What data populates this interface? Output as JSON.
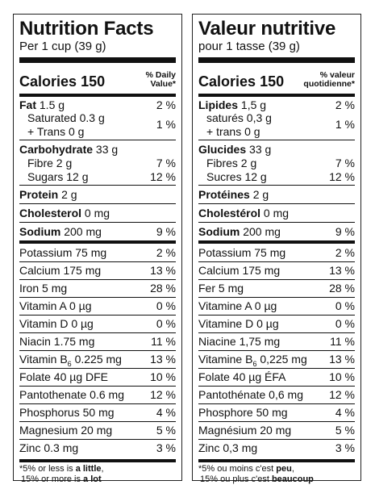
{
  "en": {
    "title": "Nutrition Facts",
    "serving": "Per 1 cup (39 g)",
    "calories_label": "Calories",
    "calories_value": "150",
    "dv_line1": "% Daily",
    "dv_line2": "Value*",
    "fat_label": "Fat",
    "fat_amount": "1.5 g",
    "fat_dv": "2 %",
    "sat_label": "Saturated 0.3 g",
    "trans_label": "+ Trans 0 g",
    "sattrans_dv": "1 %",
    "carb_label": "Carbohydrate",
    "carb_amount": "33 g",
    "fibre_label": "Fibre 2 g",
    "fibre_dv": "7 %",
    "sugars_label": "Sugars 12 g",
    "sugars_dv": "12 %",
    "protein_label": "Protein",
    "protein_amount": "2 g",
    "chol_label": "Cholesterol",
    "chol_amount": "0 mg",
    "sodium_label": "Sodium",
    "sodium_amount": "200 mg",
    "sodium_dv": "9 %",
    "minerals": [
      {
        "label": "Potassium 75 mg",
        "dv": "2 %"
      },
      {
        "label": "Calcium 175 mg",
        "dv": "13 %"
      },
      {
        "label": "Iron 5 mg",
        "dv": "28 %"
      },
      {
        "label": "Vitamin A 0 µg",
        "dv": "0 %"
      },
      {
        "label": "Vitamin D 0 µg",
        "dv": "0 %"
      },
      {
        "label": "Niacin 1.75 mg",
        "dv": "11 %"
      },
      {
        "label_pre": "Vitamin B",
        "label_sub": "6",
        "label_post": " 0.225 mg",
        "dv": "13 %"
      },
      {
        "label": "Folate 40 µg DFE",
        "dv": "10 %"
      },
      {
        "label": "Pantothenate 0.6 mg",
        "dv": "12 %"
      },
      {
        "label": "Phosphorus 50 mg",
        "dv": "4 %"
      },
      {
        "label": "Magnesium 20 mg",
        "dv": "5 %"
      },
      {
        "label": "Zinc 0.3 mg",
        "dv": "3 %"
      }
    ],
    "foot1_pre": "*5% or less is ",
    "foot1_bold": "a little",
    "foot1_post": ",",
    "foot2_pre": " 15% or more is ",
    "foot2_bold": "a lot"
  },
  "fr": {
    "title": "Valeur nutritive",
    "serving": "pour 1 tasse (39 g)",
    "calories_label": "Calories",
    "calories_value": "150",
    "dv_line1": "% valeur",
    "dv_line2": "quotidienne*",
    "fat_label": "Lipides",
    "fat_amount": "1,5 g",
    "fat_dv": "2 %",
    "sat_label": "saturés 0,3 g",
    "trans_label": "+ trans 0 g",
    "sattrans_dv": "1 %",
    "carb_label": "Glucides",
    "carb_amount": "33 g",
    "fibre_label": "Fibres 2 g",
    "fibre_dv": "7 %",
    "sugars_label": "Sucres 12 g",
    "sugars_dv": "12 %",
    "protein_label": "Protéines",
    "protein_amount": "2 g",
    "chol_label": "Cholestérol",
    "chol_amount": "0 mg",
    "sodium_label": "Sodium",
    "sodium_amount": "200 mg",
    "sodium_dv": "9 %",
    "minerals": [
      {
        "label": "Potassium 75 mg",
        "dv": "2 %"
      },
      {
        "label": "Calcium 175 mg",
        "dv": "13 %"
      },
      {
        "label": "Fer 5 mg",
        "dv": "28 %"
      },
      {
        "label": "Vitamine A 0 µg",
        "dv": "0 %"
      },
      {
        "label": "Vitamine D 0 µg",
        "dv": "0 %"
      },
      {
        "label": "Niacine 1,75 mg",
        "dv": "11 %"
      },
      {
        "label_pre": "Vitamine B",
        "label_sub": "6",
        "label_post": " 0,225 mg",
        "dv": "13 %"
      },
      {
        "label": "Folate 40 µg ÉFA",
        "dv": "10 %"
      },
      {
        "label": "Pantothénate 0,6 mg",
        "dv": "12 %"
      },
      {
        "label": "Phosphore 50 mg",
        "dv": "4 %"
      },
      {
        "label": "Magnésium 20 mg",
        "dv": "5 %"
      },
      {
        "label": "Zinc 0,3 mg",
        "dv": "3 %"
      }
    ],
    "foot1_pre": "*5% ou moins c'est ",
    "foot1_bold": "peu",
    "foot1_post": ",",
    "foot2_pre": " 15% ou plus c'est ",
    "foot2_bold": "beaucoup"
  }
}
